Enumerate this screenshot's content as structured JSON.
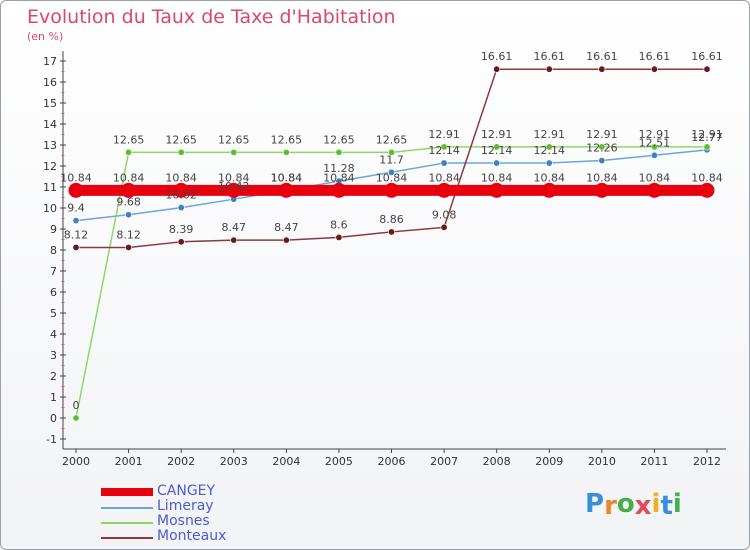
{
  "header": {
    "title": "Evolution du Taux de Taxe d'Habitation",
    "unit": "(en %)"
  },
  "logo": {
    "text": "Proxiti",
    "letter_colors": [
      "#3a8fd9",
      "#e8882a",
      "#44b04a",
      "#e04a5a",
      "#f0b020",
      "#3a8fd9",
      "#44b04a"
    ]
  },
  "chart_data": {
    "type": "line",
    "x": [
      "2000",
      "2001",
      "2002",
      "2003",
      "2004",
      "2005",
      "2006",
      "2007",
      "2008",
      "2009",
      "2010",
      "2011",
      "2012"
    ],
    "yticks": [
      "-1",
      "0",
      "1",
      "2",
      "3",
      "4",
      "5",
      "6",
      "7",
      "8",
      "9",
      "10",
      "11",
      "12",
      "13",
      "14",
      "15",
      "16",
      "17"
    ],
    "ylim": [
      -1,
      17
    ],
    "grid": false,
    "series": [
      {
        "name": "CANGEY",
        "color": "#e8000e",
        "point_color": "#e8000e",
        "thick": true,
        "values": [
          10.84,
          10.84,
          10.84,
          10.84,
          10.84,
          10.84,
          10.84,
          10.84,
          10.84,
          10.84,
          10.84,
          10.84,
          10.84
        ],
        "labels": [
          "10.84",
          "10.84",
          "10.84",
          "10.84",
          "10.84",
          "10.84",
          "10.84",
          "10.84",
          "10.84",
          "10.84",
          "10.84",
          "10.84",
          "10.84"
        ]
      },
      {
        "name": "Limeray",
        "color": "#6aa6d8",
        "point_color": "#3d82c4",
        "thick": false,
        "values": [
          9.4,
          9.68,
          10.02,
          10.42,
          10.84,
          11.28,
          11.7,
          12.14,
          12.14,
          12.14,
          12.26,
          12.51,
          12.77
        ],
        "labels": [
          "9.4",
          "9.68",
          "10.02",
          "10.42",
          "10.84",
          "11.28",
          "11.7",
          "12.14",
          "12.14",
          "12.14",
          "12.26",
          "12.51",
          "12.77"
        ]
      },
      {
        "name": "Mosnes",
        "color": "#8ed86a",
        "point_color": "#5cbf2e",
        "thick": false,
        "values": [
          0,
          12.65,
          12.65,
          12.65,
          12.65,
          12.65,
          12.65,
          12.91,
          12.91,
          12.91,
          12.91,
          12.91,
          12.91
        ],
        "labels": [
          "0",
          "12.65",
          "12.65",
          "12.65",
          "12.65",
          "12.65",
          "12.65",
          "12.91",
          "12.91",
          "12.91",
          "12.91",
          "12.91",
          "12.91"
        ]
      },
      {
        "name": "Monteaux",
        "color": "#8a3a3a",
        "point_color": "#6a1a1a",
        "thick": false,
        "values": [
          8.12,
          8.12,
          8.39,
          8.47,
          8.47,
          8.6,
          8.86,
          9.08,
          16.61,
          16.61,
          16.61,
          16.61,
          16.61
        ],
        "labels": [
          "8.12",
          "8.12",
          "8.39",
          "8.47",
          "8.47",
          "8.6",
          "8.86",
          "9.08",
          "16.61",
          "16.61",
          "16.61",
          "16.61",
          "16.61"
        ]
      }
    ]
  }
}
